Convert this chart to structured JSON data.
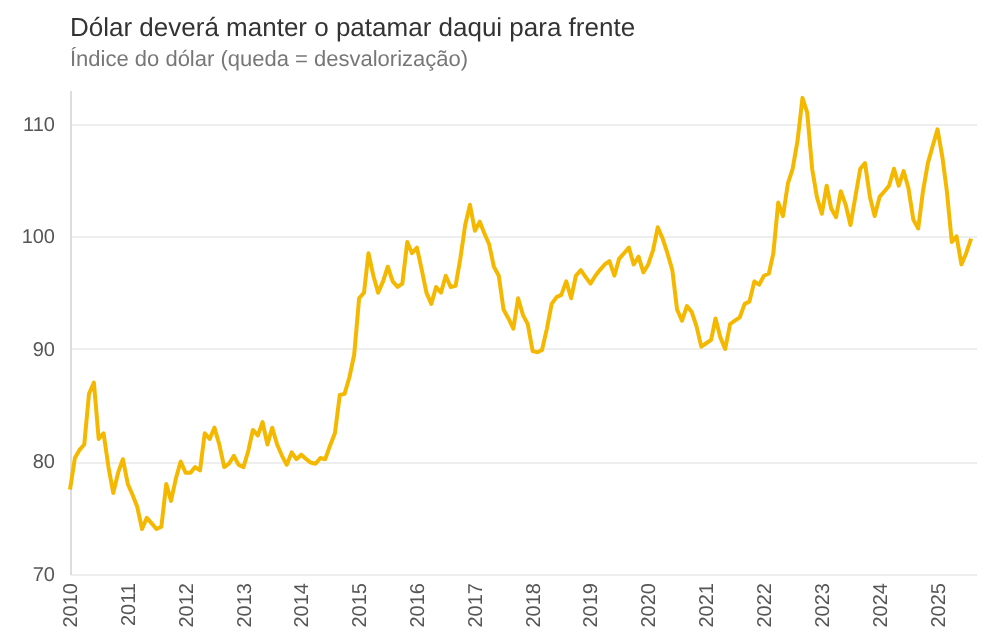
{
  "chart_data": {
    "type": "line",
    "title": "Dólar deverá manter o patamar daqui para frente",
    "subtitle": "Índice do dólar (queda = desvalorização)",
    "x": [
      "2010-01",
      "2010-02",
      "2010-03",
      "2010-04",
      "2010-05",
      "2010-06",
      "2010-07",
      "2010-08",
      "2010-09",
      "2010-10",
      "2010-11",
      "2010-12",
      "2011-01",
      "2011-02",
      "2011-03",
      "2011-04",
      "2011-05",
      "2011-06",
      "2011-07",
      "2011-08",
      "2011-09",
      "2011-10",
      "2011-11",
      "2011-12",
      "2012-01",
      "2012-02",
      "2012-03",
      "2012-04",
      "2012-05",
      "2012-06",
      "2012-07",
      "2012-08",
      "2012-09",
      "2012-10",
      "2012-11",
      "2012-12",
      "2013-01",
      "2013-02",
      "2013-03",
      "2013-04",
      "2013-05",
      "2013-06",
      "2013-07",
      "2013-08",
      "2013-09",
      "2013-10",
      "2013-11",
      "2013-12",
      "2014-01",
      "2014-02",
      "2014-03",
      "2014-04",
      "2014-05",
      "2014-06",
      "2014-07",
      "2014-08",
      "2014-09",
      "2014-10",
      "2014-11",
      "2014-12",
      "2015-01",
      "2015-02",
      "2015-03",
      "2015-04",
      "2015-05",
      "2015-06",
      "2015-07",
      "2015-08",
      "2015-09",
      "2015-10",
      "2015-11",
      "2015-12",
      "2016-01",
      "2016-02",
      "2016-03",
      "2016-04",
      "2016-05",
      "2016-06",
      "2016-07",
      "2016-08",
      "2016-09",
      "2016-10",
      "2016-11",
      "2016-12",
      "2017-01",
      "2017-02",
      "2017-03",
      "2017-04",
      "2017-05",
      "2017-06",
      "2017-07",
      "2017-08",
      "2017-09",
      "2017-10",
      "2017-11",
      "2017-12",
      "2018-01",
      "2018-02",
      "2018-03",
      "2018-04",
      "2018-05",
      "2018-06",
      "2018-07",
      "2018-08",
      "2018-09",
      "2018-10",
      "2018-11",
      "2018-12",
      "2019-01",
      "2019-02",
      "2019-03",
      "2019-04",
      "2019-05",
      "2019-06",
      "2019-07",
      "2019-08",
      "2019-09",
      "2019-10",
      "2019-11",
      "2019-12",
      "2020-01",
      "2020-02",
      "2020-03",
      "2020-04",
      "2020-05",
      "2020-06",
      "2020-07",
      "2020-08",
      "2020-09",
      "2020-10",
      "2020-11",
      "2020-12",
      "2021-01",
      "2021-02",
      "2021-03",
      "2021-04",
      "2021-05",
      "2021-06",
      "2021-07",
      "2021-08",
      "2021-09",
      "2021-10",
      "2021-11",
      "2021-12",
      "2022-01",
      "2022-02",
      "2022-03",
      "2022-04",
      "2022-05",
      "2022-06",
      "2022-07",
      "2022-08",
      "2022-09",
      "2022-10",
      "2022-11",
      "2022-12",
      "2023-01",
      "2023-02",
      "2023-03",
      "2023-04",
      "2023-05",
      "2023-06",
      "2023-07",
      "2023-08",
      "2023-09",
      "2023-10",
      "2023-11",
      "2023-12",
      "2024-01",
      "2024-02",
      "2024-03",
      "2024-04",
      "2024-05",
      "2024-06",
      "2024-07",
      "2024-08",
      "2024-09",
      "2024-10",
      "2024-11",
      "2024-12",
      "2025-01",
      "2025-02",
      "2025-03",
      "2025-04",
      "2025-05",
      "2025-06",
      "2025-07",
      "2025-08"
    ],
    "series": [
      {
        "color": "#f5b800",
        "values": [
          77.5,
          80.3,
          81,
          81.5,
          86,
          87,
          82,
          82.5,
          79.5,
          77.2,
          79,
          80.2,
          78,
          77,
          76,
          74,
          75,
          74.5,
          74,
          74.2,
          78,
          76.5,
          78.5,
          80,
          79,
          79,
          79.5,
          79.2,
          82.5,
          82,
          83,
          81.5,
          79.5,
          79.8,
          80.5,
          79.7,
          79.5,
          81,
          82.8,
          82.3,
          83.5,
          81.5,
          83,
          81.5,
          80.5,
          79.7,
          80.8,
          80.2,
          80.6,
          80.2,
          79.9,
          79.8,
          80.3,
          80.2,
          81.4,
          82.5,
          85.9,
          86,
          87.5,
          89.5,
          94.5,
          95,
          98.5,
          96.5,
          95,
          96,
          97.3,
          96,
          95.5,
          95.8,
          99.5,
          98.5,
          99,
          97,
          95,
          94,
          95.5,
          95,
          96.5,
          95.5,
          95.6,
          98,
          101,
          102.8,
          100.5,
          101.3,
          100.3,
          99.3,
          97.3,
          96.5,
          93.5,
          92.7,
          91.8,
          94.5,
          93,
          92.2,
          89.8,
          89.7,
          89.9,
          91.8,
          94,
          94.6,
          94.8,
          96,
          94.5,
          96.5,
          97,
          96.4,
          95.8,
          96.5,
          97,
          97.5,
          97.8,
          96.5,
          98,
          98.5,
          99,
          97.5,
          98.2,
          96.8,
          97.5,
          98.8,
          100.8,
          99.8,
          98.5,
          97,
          93.5,
          92.5,
          93.8,
          93.3,
          92,
          90.2,
          90.5,
          90.8,
          92.7,
          91,
          90,
          92.2,
          92.5,
          92.8,
          94,
          94.2,
          96,
          95.7,
          96.5,
          96.7,
          98.5,
          103,
          101.8,
          104.7,
          106,
          108.5,
          112.3,
          111,
          106,
          103.5,
          102,
          104.5,
          102.5,
          101.7,
          104,
          102.8,
          101,
          103.5,
          106,
          106.5,
          103.5,
          101.8,
          103.5,
          104,
          104.5,
          106,
          104.5,
          105.8,
          104.3,
          101.5,
          100.7,
          104,
          106.5,
          108,
          109.5,
          107,
          104,
          99.5,
          100,
          97.5,
          98.5,
          99.8
        ]
      }
    ],
    "xlim": [
      "2010-01",
      "2025-09"
    ],
    "xticks": [
      "2010",
      "2011",
      "2012",
      "2013",
      "2014",
      "2015",
      "2016",
      "2017",
      "2018",
      "2019",
      "2020",
      "2021",
      "2022",
      "2023",
      "2024",
      "2025"
    ],
    "ylim": [
      70,
      113
    ],
    "yticks": [
      70,
      80,
      90,
      100,
      110
    ],
    "grid": "y"
  }
}
